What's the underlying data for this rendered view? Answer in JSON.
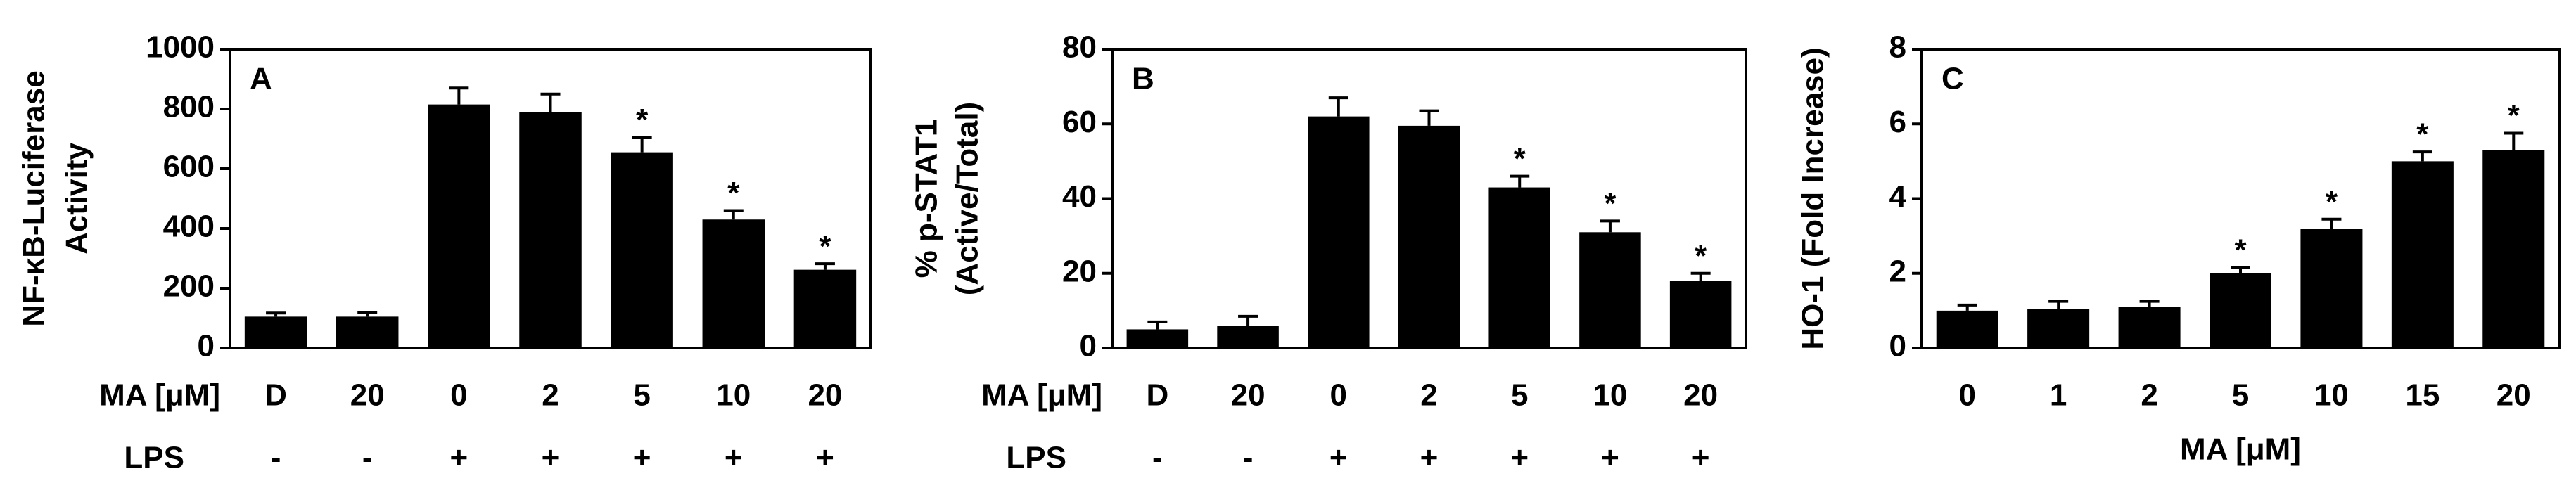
{
  "chart_data": [
    {
      "type": "bar",
      "panel": "A",
      "ylabel": [
        "NF-κB-Luciferase",
        "Activity"
      ],
      "x_label": "MA [μM]",
      "categories": [
        "D",
        "20",
        "0",
        "2",
        "5",
        "10",
        "20"
      ],
      "values": [
        105,
        105,
        815,
        790,
        655,
        430,
        262
      ],
      "errors": [
        12,
        15,
        55,
        60,
        50,
        30,
        20
      ],
      "significance": [
        null,
        null,
        null,
        null,
        "*",
        "*",
        "*"
      ],
      "row_label": "LPS",
      "row_values": [
        "-",
        "-",
        "+",
        "+",
        "+",
        "+",
        "+"
      ],
      "color": "#000000",
      "ylim": [
        0,
        1000
      ],
      "yticks": [
        0,
        200,
        400,
        600,
        800,
        1000
      ]
    },
    {
      "type": "bar",
      "panel": "B",
      "ylabel": [
        "% p-STAT1",
        "(Active/Total)"
      ],
      "x_label": "MA [μM]",
      "categories": [
        "D",
        "20",
        "0",
        "2",
        "5",
        "10",
        "20"
      ],
      "values": [
        5,
        6,
        62,
        59.5,
        43,
        31,
        18
      ],
      "errors": [
        2,
        2.5,
        5,
        4,
        3,
        3,
        2
      ],
      "significance": [
        null,
        null,
        null,
        null,
        "*",
        "*",
        "*"
      ],
      "row_label": "LPS",
      "row_values": [
        "-",
        "-",
        "+",
        "+",
        "+",
        "+",
        "+"
      ],
      "color": "#000000",
      "ylim": [
        0,
        80
      ],
      "yticks": [
        0,
        20,
        40,
        60,
        80
      ]
    },
    {
      "type": "bar",
      "panel": "C",
      "ylabel": [
        "HO-1 (Fold Increase)"
      ],
      "xlabel": "MA [μM]",
      "categories": [
        "0",
        "1",
        "2",
        "5",
        "10",
        "15",
        "20"
      ],
      "values": [
        1.0,
        1.05,
        1.1,
        2.0,
        3.2,
        5.0,
        5.3
      ],
      "errors": [
        0.15,
        0.2,
        0.15,
        0.15,
        0.25,
        0.25,
        0.45
      ],
      "significance": [
        null,
        null,
        null,
        "*",
        "*",
        "*",
        "*"
      ],
      "color": "#000000",
      "ylim": [
        0,
        8
      ],
      "yticks": [
        0,
        2,
        4,
        6,
        8
      ]
    }
  ]
}
